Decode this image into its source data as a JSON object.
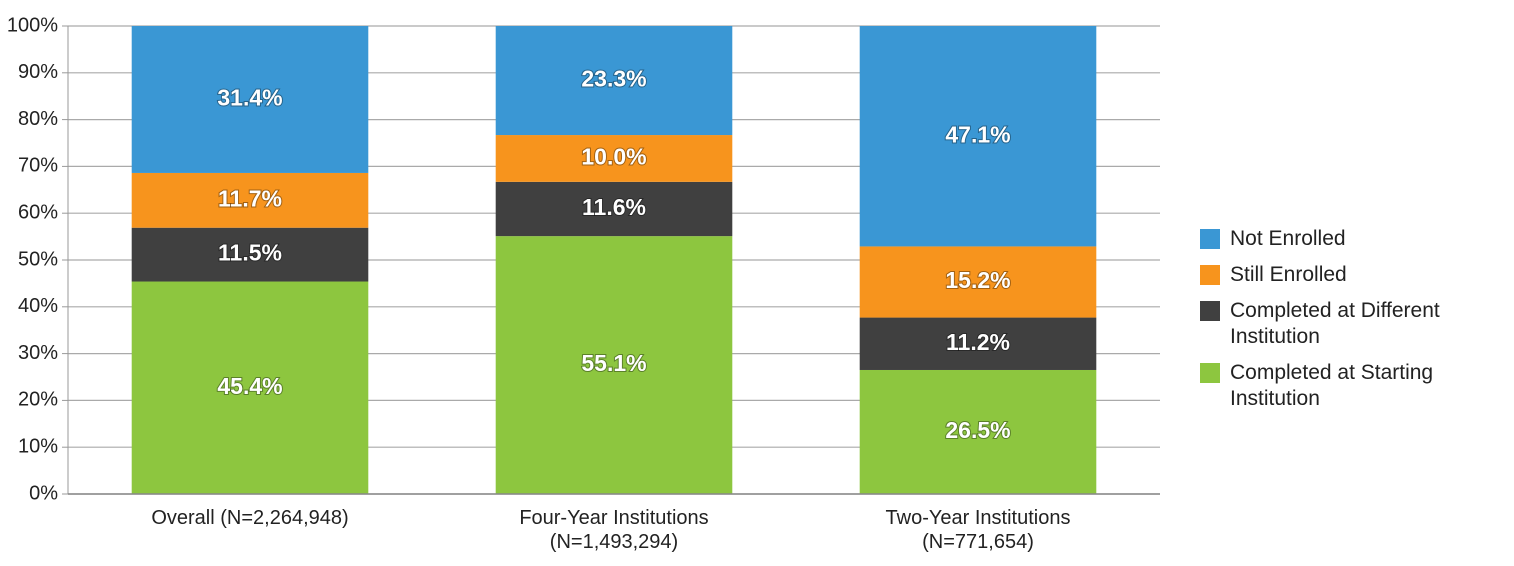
{
  "chart_data": {
    "type": "stacked-bar",
    "categories": [
      "Overall (N=2,264,948)",
      "Four-Year Institutions (N=1,493,294)",
      "Two-Year Institutions (N=771,654)"
    ],
    "series": [
      {
        "name": "Not Enrolled",
        "color": "#3a97d4",
        "values": [
          31.4,
          23.3,
          47.1
        ],
        "value_labels": [
          "31.4%",
          "23.3%",
          "47.1%"
        ]
      },
      {
        "name": "Still Enrolled",
        "color": "#f7941d",
        "values": [
          11.7,
          10.0,
          15.2
        ],
        "value_labels": [
          "11.7%",
          "10.0%",
          "15.2%"
        ]
      },
      {
        "name": "Completed at Different Institution",
        "color": "#404040",
        "values": [
          11.5,
          11.6,
          11.2
        ],
        "value_labels": [
          "11.5%",
          "11.6%",
          "11.2%"
        ]
      },
      {
        "name": "Completed at Starting Institution",
        "color": "#8dc63f",
        "values": [
          45.4,
          55.1,
          26.5
        ],
        "value_labels": [
          "45.4%",
          "55.1%",
          "26.5%"
        ]
      }
    ],
    "ylim": [
      0,
      100
    ],
    "yticks": [
      {
        "value": 0,
        "label": "0%"
      },
      {
        "value": 10,
        "label": "10%"
      },
      {
        "value": 20,
        "label": "20%"
      },
      {
        "value": 30,
        "label": "30%"
      },
      {
        "value": 40,
        "label": "40%"
      },
      {
        "value": 50,
        "label": "50%"
      },
      {
        "value": 60,
        "label": "60%"
      },
      {
        "value": 70,
        "label": "70%"
      },
      {
        "value": 80,
        "label": "80%"
      },
      {
        "value": 90,
        "label": "90%"
      },
      {
        "value": 100,
        "label": "100%"
      }
    ],
    "grid": true
  }
}
